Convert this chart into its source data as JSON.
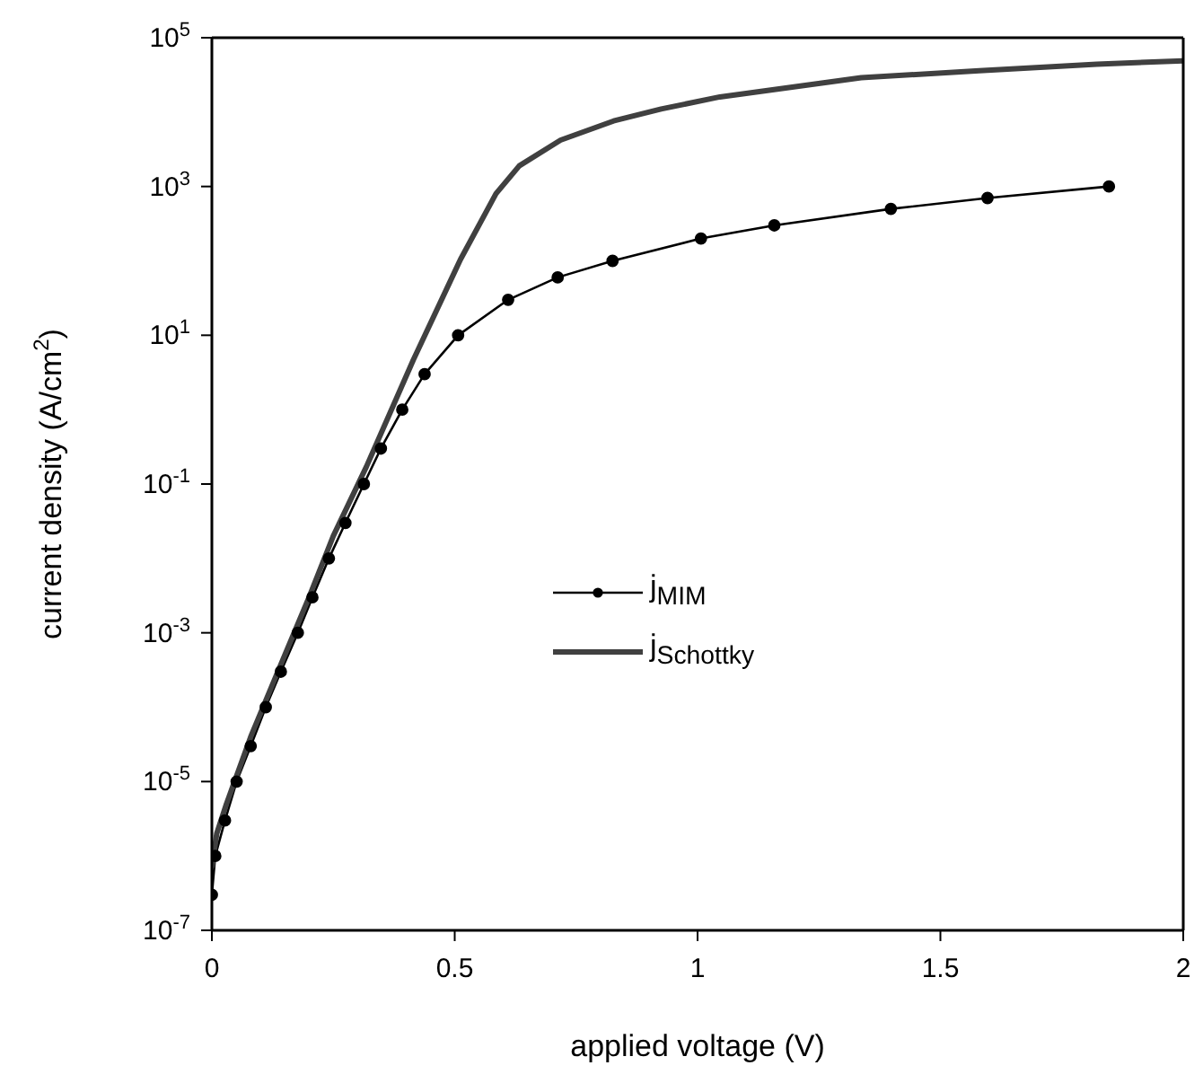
{
  "chart_data": {
    "type": "line",
    "xlabel": "applied voltage (V)",
    "ylabel": "current density (A/cm$^{2}$)",
    "log": "y",
    "grid": false,
    "legend": "center",
    "line_style": "solid",
    "xlim": [
      0,
      2
    ],
    "xticks": [
      0,
      0.5,
      1,
      1.5,
      2
    ],
    "ylim": [
      1e-07,
      100000
    ],
    "yticks": [
      {
        "value": 1e-07,
        "label": "10$^{-7}$"
      },
      {
        "value": 1e-05,
        "label": "10$^{-5}$"
      },
      {
        "value": 0.001,
        "label": "10$^{-3}$"
      },
      {
        "value": 0.1,
        "label": "10$^{-1}$"
      },
      {
        "value": 10,
        "label": "10$^{1}$"
      },
      {
        "value": 1000,
        "label": "10$^{3}$"
      },
      {
        "value": 100000,
        "label": "10$^{5}$"
      }
    ],
    "series": [
      {
        "name": "j$_{MIM}$",
        "color": "#000000",
        "marker": "circle",
        "x": [
          0,
          0.007,
          0.027,
          0.051,
          0.08,
          0.111,
          0.142,
          0.177,
          0.207,
          0.241,
          0.275,
          0.313,
          0.348,
          0.392,
          0.438,
          0.507,
          0.61,
          0.712,
          0.825,
          1.007,
          1.158,
          1.398,
          1.597,
          1.847
        ],
        "values": [
          3e-07,
          1e-06,
          3e-06,
          1e-05,
          3e-05,
          0.0001,
          0.0003,
          0.001,
          0.003,
          0.01,
          0.03,
          0.1,
          0.3,
          1,
          3,
          10,
          30,
          60,
          100,
          200,
          300,
          500,
          700,
          1000
        ]
      },
      {
        "name": "j$_{Schottky}$",
        "color": "#404040",
        "marker": "none",
        "x": [
          0,
          0.01,
          0.03,
          0.08,
          0.15,
          0.2,
          0.25,
          0.318,
          0.415,
          0.512,
          0.585,
          0.633,
          0.718,
          0.827,
          0.925,
          1.046,
          1.337,
          1.58,
          1.822,
          2
        ],
        "values": [
          7e-07,
          2e-06,
          5e-06,
          4e-05,
          0.0005,
          0.003,
          0.02,
          0.17,
          4.7,
          105,
          800,
          1900,
          4200,
          7600,
          11000,
          16000,
          29000,
          36000,
          44000,
          49000
        ]
      }
    ]
  }
}
